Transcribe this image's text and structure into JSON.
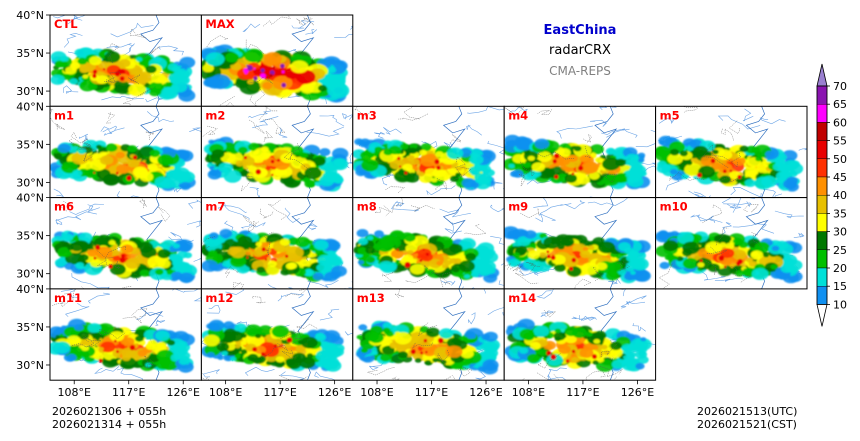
{
  "header": {
    "region": "EastChina",
    "variable": "radarCRX",
    "source": "CMA-REPS",
    "region_color": "#0000cc",
    "source_color": "#808080"
  },
  "footer": {
    "init_line1": "2026021306  +  055h",
    "init_line2": "2026021314  +  055h",
    "valid_utc": "2026021513(UTC)",
    "valid_cst": "2026021521(CST)"
  },
  "chart_data": {
    "type": "heatmap",
    "title": "EastChina radarCRX CMA-REPS",
    "panels": [
      "CTL",
      "MAX",
      "m1",
      "m2",
      "m3",
      "m4",
      "m5",
      "m6",
      "m7",
      "m8",
      "m9",
      "m10",
      "m11",
      "m12",
      "m13",
      "m14"
    ],
    "panel_label_color": "#ff0000",
    "y_ticks": [
      "40°N",
      "35°N",
      "30°N"
    ],
    "y_values": [
      40,
      35,
      30
    ],
    "x_ticks": [
      "108°E",
      "117°E",
      "126°E"
    ],
    "x_values": [
      108,
      117,
      126
    ],
    "xlim": [
      104,
      129
    ],
    "ylim": [
      28,
      40
    ],
    "colorbar": {
      "levels": [
        "70",
        "65",
        "60",
        "55",
        "50",
        "45",
        "40",
        "35",
        "30",
        "25",
        "20",
        "15",
        "10"
      ],
      "colors": [
        "#9a80d0",
        "#8a14b0",
        "#ff00ff",
        "#c00000",
        "#e80000",
        "#ff3000",
        "#ff9000",
        "#e8c000",
        "#ffff00",
        "#007800",
        "#00c000",
        "#00e0d8",
        "#1090f0"
      ]
    }
  }
}
